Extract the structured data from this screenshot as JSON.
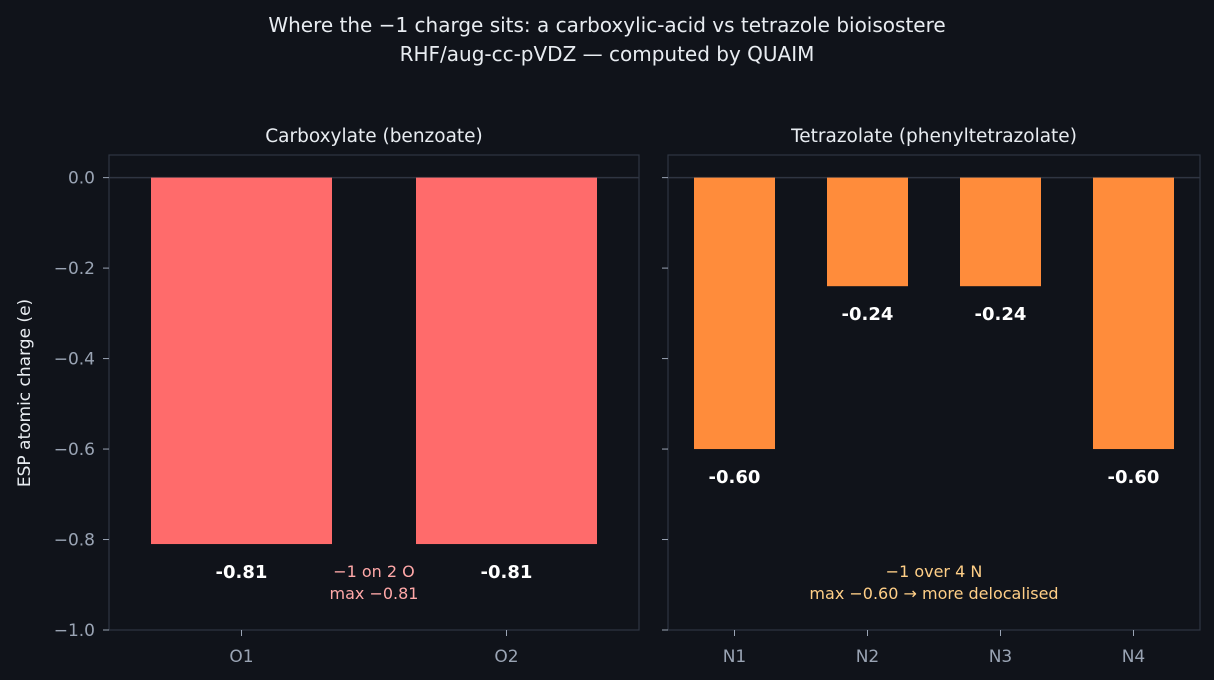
{
  "figure": {
    "title_line1": "Where the −1 charge sits: a carboxylic-acid vs tetrazole bioisostere",
    "title_line2": "RHF/aug-cc-pVDZ — computed by QUAIM",
    "ylabel": "ESP atomic charge (e)",
    "background": "#10131a"
  },
  "chart_data": [
    {
      "type": "bar",
      "title": "Carboxylate  (benzoate)",
      "categories": [
        "O1",
        "O2"
      ],
      "values": [
        -0.81,
        -0.81
      ],
      "value_labels": [
        "-0.81",
        "-0.81"
      ],
      "color": "#ff6b6b",
      "ylim": [
        -1.0,
        0.05
      ],
      "yticks": [
        0.0,
        -0.2,
        -0.4,
        -0.6,
        -0.8,
        -1.0
      ],
      "ytick_labels": [
        "0.0",
        "−0.2",
        "−0.4",
        "−0.6",
        "−0.8",
        "−1.0"
      ],
      "annotation": {
        "line1": "−1 on 2 O",
        "line2": "max −0.81",
        "color": "#ffa8a8"
      }
    },
    {
      "type": "bar",
      "title": "Tetrazolate  (phenyltetrazolate)",
      "categories": [
        "N1",
        "N2",
        "N3",
        "N4"
      ],
      "values": [
        -0.6,
        -0.24,
        -0.24,
        -0.6
      ],
      "value_labels": [
        "-0.60",
        "-0.24",
        "-0.24",
        "-0.60"
      ],
      "color": "#ff8c3b",
      "ylim": [
        -1.0,
        0.05
      ],
      "annotation": {
        "line1": "−1 over 4 N",
        "line2": "max −0.60  → more delocalised",
        "color": "#ffcf87"
      }
    }
  ]
}
